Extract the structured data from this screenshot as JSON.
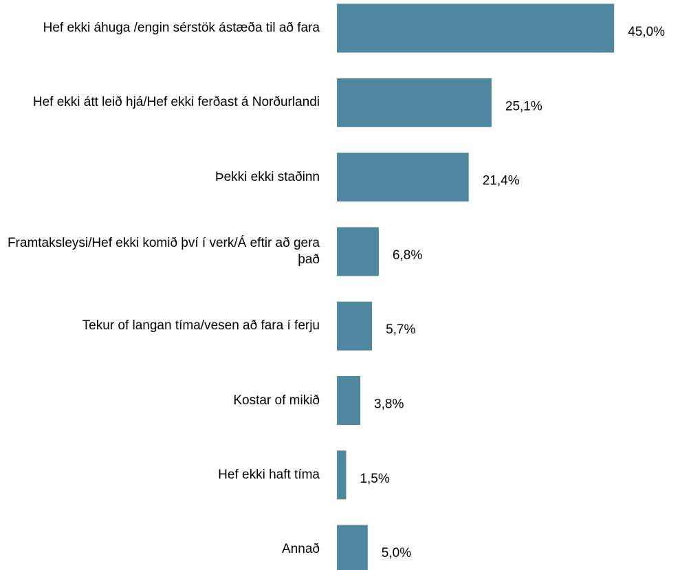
{
  "chart_data": {
    "type": "bar",
    "orientation": "horizontal",
    "color": "#4f87a0",
    "categories": [
      "Hef ekki áhuga /engin sérstök ástæða til að fara",
      "Hef ekki átt leið hjá/Hef ekki ferðast á Norðurlandi",
      "Þekki ekki staðinn",
      "Framtaksleysi/Hef ekki komið því í verk/Á eftir að gera það",
      "Tekur of langan tíma/vesen að fara í ferju",
      "Kostar of mikið",
      "Hef ekki haft tíma",
      "Annað"
    ],
    "values": [
      45.0,
      25.1,
      21.4,
      6.8,
      5.7,
      3.8,
      1.5,
      5.0
    ],
    "value_labels": [
      "45,0%",
      "25,1%",
      "21,4%",
      "6,8%",
      "5,7%",
      "3,8%",
      "1,5%",
      "5,0%"
    ]
  }
}
